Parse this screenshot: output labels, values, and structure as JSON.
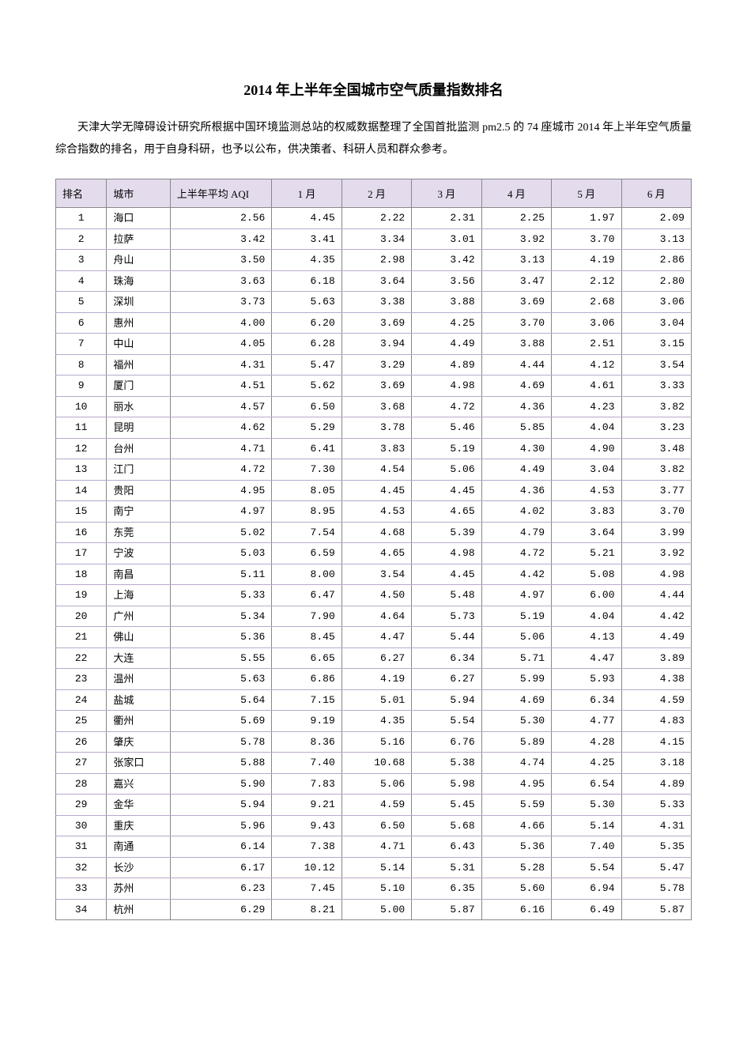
{
  "title": "2014 年上半年全国城市空气质量指数排名",
  "intro": "天津大学无障碍设计研究所根据中国环境监测总站的权威数据整理了全国首批监测 pm2.5 的 74 座城市 2014 年上半年空气质量综合指数的排名，用于自身科研，也予以公布，供决策者、科研人员和群众参考。",
  "table": {
    "type": "table",
    "header_bg_color": "#e4dced",
    "border_color": "#888888",
    "row_border_color": "#b8a9cc",
    "body_font": "Courier New",
    "city_font": "SimSun",
    "header_fontsize": 13,
    "body_fontsize": 13,
    "columns": [
      "排名",
      "城市",
      "上半年平均 AQI",
      "1 月",
      "2 月",
      "3 月",
      "4 月",
      "5 月",
      "6 月"
    ],
    "column_align": [
      "center",
      "left",
      "right",
      "right",
      "right",
      "right",
      "right",
      "right",
      "right"
    ],
    "column_widths_pct": [
      8,
      10,
      16,
      11,
      11,
      11,
      11,
      11,
      11
    ],
    "rows": [
      [
        "1",
        "海口",
        "2.56",
        "4.45",
        "2.22",
        "2.31",
        "2.25",
        "1.97",
        "2.09"
      ],
      [
        "2",
        "拉萨",
        "3.42",
        "3.41",
        "3.34",
        "3.01",
        "3.92",
        "3.70",
        "3.13"
      ],
      [
        "3",
        "舟山",
        "3.50",
        "4.35",
        "2.98",
        "3.42",
        "3.13",
        "4.19",
        "2.86"
      ],
      [
        "4",
        "珠海",
        "3.63",
        "6.18",
        "3.64",
        "3.56",
        "3.47",
        "2.12",
        "2.80"
      ],
      [
        "5",
        "深圳",
        "3.73",
        "5.63",
        "3.38",
        "3.88",
        "3.69",
        "2.68",
        "3.06"
      ],
      [
        "6",
        "惠州",
        "4.00",
        "6.20",
        "3.69",
        "4.25",
        "3.70",
        "3.06",
        "3.04"
      ],
      [
        "7",
        "中山",
        "4.05",
        "6.28",
        "3.94",
        "4.49",
        "3.88",
        "2.51",
        "3.15"
      ],
      [
        "8",
        "福州",
        "4.31",
        "5.47",
        "3.29",
        "4.89",
        "4.44",
        "4.12",
        "3.54"
      ],
      [
        "9",
        "厦门",
        "4.51",
        "5.62",
        "3.69",
        "4.98",
        "4.69",
        "4.61",
        "3.33"
      ],
      [
        "10",
        "丽水",
        "4.57",
        "6.50",
        "3.68",
        "4.72",
        "4.36",
        "4.23",
        "3.82"
      ],
      [
        "11",
        "昆明",
        "4.62",
        "5.29",
        "3.78",
        "5.46",
        "5.85",
        "4.04",
        "3.23"
      ],
      [
        "12",
        "台州",
        "4.71",
        "6.41",
        "3.83",
        "5.19",
        "4.30",
        "4.90",
        "3.48"
      ],
      [
        "13",
        "江门",
        "4.72",
        "7.30",
        "4.54",
        "5.06",
        "4.49",
        "3.04",
        "3.82"
      ],
      [
        "14",
        "贵阳",
        "4.95",
        "8.05",
        "4.45",
        "4.45",
        "4.36",
        "4.53",
        "3.77"
      ],
      [
        "15",
        "南宁",
        "4.97",
        "8.95",
        "4.53",
        "4.65",
        "4.02",
        "3.83",
        "3.70"
      ],
      [
        "16",
        "东莞",
        "5.02",
        "7.54",
        "4.68",
        "5.39",
        "4.79",
        "3.64",
        "3.99"
      ],
      [
        "17",
        "宁波",
        "5.03",
        "6.59",
        "4.65",
        "4.98",
        "4.72",
        "5.21",
        "3.92"
      ],
      [
        "18",
        "南昌",
        "5.11",
        "8.00",
        "3.54",
        "4.45",
        "4.42",
        "5.08",
        "4.98"
      ],
      [
        "19",
        "上海",
        "5.33",
        "6.47",
        "4.50",
        "5.48",
        "4.97",
        "6.00",
        "4.44"
      ],
      [
        "20",
        "广州",
        "5.34",
        "7.90",
        "4.64",
        "5.73",
        "5.19",
        "4.04",
        "4.42"
      ],
      [
        "21",
        "佛山",
        "5.36",
        "8.45",
        "4.47",
        "5.44",
        "5.06",
        "4.13",
        "4.49"
      ],
      [
        "22",
        "大连",
        "5.55",
        "6.65",
        "6.27",
        "6.34",
        "5.71",
        "4.47",
        "3.89"
      ],
      [
        "23",
        "温州",
        "5.63",
        "6.86",
        "4.19",
        "6.27",
        "5.99",
        "5.93",
        "4.38"
      ],
      [
        "24",
        "盐城",
        "5.64",
        "7.15",
        "5.01",
        "5.94",
        "4.69",
        "6.34",
        "4.59"
      ],
      [
        "25",
        "衢州",
        "5.69",
        "9.19",
        "4.35",
        "5.54",
        "5.30",
        "4.77",
        "4.83"
      ],
      [
        "26",
        "肇庆",
        "5.78",
        "8.36",
        "5.16",
        "6.76",
        "5.89",
        "4.28",
        "4.15"
      ],
      [
        "27",
        "张家口",
        "5.88",
        "7.40",
        "10.68",
        "5.38",
        "4.74",
        "4.25",
        "3.18"
      ],
      [
        "28",
        "嘉兴",
        "5.90",
        "7.83",
        "5.06",
        "5.98",
        "4.95",
        "6.54",
        "4.89"
      ],
      [
        "29",
        "金华",
        "5.94",
        "9.21",
        "4.59",
        "5.45",
        "5.59",
        "5.30",
        "5.33"
      ],
      [
        "30",
        "重庆",
        "5.96",
        "9.43",
        "6.50",
        "5.68",
        "4.66",
        "5.14",
        "4.31"
      ],
      [
        "31",
        "南通",
        "6.14",
        "7.38",
        "4.71",
        "6.43",
        "5.36",
        "7.40",
        "5.35"
      ],
      [
        "32",
        "长沙",
        "6.17",
        "10.12",
        "5.14",
        "5.31",
        "5.28",
        "5.54",
        "5.47"
      ],
      [
        "33",
        "苏州",
        "6.23",
        "7.45",
        "5.10",
        "6.35",
        "5.60",
        "6.94",
        "5.78"
      ],
      [
        "34",
        "杭州",
        "6.29",
        "8.21",
        "5.00",
        "5.87",
        "6.16",
        "6.49",
        "5.87"
      ]
    ]
  }
}
